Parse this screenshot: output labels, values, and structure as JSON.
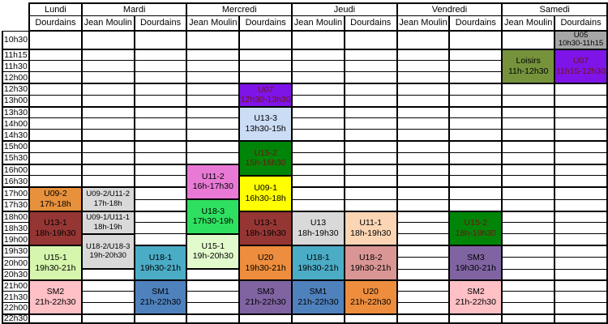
{
  "schedule": {
    "days": [
      {
        "label": "Lundi",
        "venues": [
          "Dourdains"
        ]
      },
      {
        "label": "Mardi",
        "venues": [
          "Jean Moulin",
          "Dourdains"
        ]
      },
      {
        "label": "Mercredi",
        "venues": [
          "Jean Moulin",
          "Dourdains"
        ]
      },
      {
        "label": "Jeudi",
        "venues": [
          "Jean Moulin",
          "Dourdains"
        ]
      },
      {
        "label": "Vendredi",
        "venues": [
          "Jean Moulin",
          "Dourdains"
        ]
      },
      {
        "label": "Samedi",
        "venues": [
          "Jean Moulin",
          "Dourdains"
        ]
      }
    ],
    "columns": [
      "lundi-dourdains",
      "mardi-jean-moulin",
      "mardi-dourdains",
      "mercredi-jean-moulin",
      "mercredi-dourdains",
      "jeudi-jean-moulin",
      "jeudi-dourdains",
      "vendredi-jean-moulin",
      "vendredi-dourdains",
      "samedi-jean-moulin",
      "samedi-dourdains"
    ],
    "time_rows": [
      "10h30",
      "11h15",
      "11h30",
      "12h00",
      "12h30",
      "13h00",
      "13h30",
      "14h00",
      "14h30",
      "15h00",
      "15h30",
      "16h00",
      "16h30",
      "17h00",
      "17h30",
      "18h00",
      "18h30",
      "19h00",
      "19h30",
      "20h00",
      "20h30",
      "21h00",
      "21h30",
      "22h00",
      "22h30"
    ],
    "thick_top_rows": [
      "11h15",
      "12h30",
      "13h30",
      "15h00",
      "16h00",
      "17h00",
      "18h00",
      "19h30",
      "21h00",
      "22h30"
    ],
    "blocks": [
      {
        "col": 0,
        "start": "17h00",
        "span": 2,
        "name": "U09-2",
        "time": "17h-18h",
        "bg": "#E8913C",
        "fg": "#000000"
      },
      {
        "col": 0,
        "start": "18h00",
        "span": 3,
        "name": "U13-1",
        "time": "18h-19h30",
        "bg": "#963634",
        "fg": "#000000"
      },
      {
        "col": 0,
        "start": "19h30",
        "span": 3,
        "name": "U15-1",
        "time": "19h30-21h",
        "bg": "#D5F6AC",
        "fg": "#000000"
      },
      {
        "col": 0,
        "start": "21h00",
        "span": 3,
        "name": "SM2",
        "time": "21h-22h30",
        "bg": "#FFC0C6",
        "fg": "#000000"
      },
      {
        "col": 1,
        "start": "17h00",
        "span": 2,
        "name": "U09-2/U11-2",
        "time": "17h-18h",
        "bg": "#D9D9D9",
        "fg": "#000000"
      },
      {
        "col": 1,
        "start": "18h00",
        "span": 2,
        "name": "U09-1/U11-1",
        "time": "18h-19h",
        "bg": "#D9D9D9",
        "fg": "#000000"
      },
      {
        "col": 1,
        "start": "19h00",
        "span": 3,
        "name": "U18-2/U18-3",
        "time": "19h-20h30",
        "bg": "#D9D9D9",
        "fg": "#000000"
      },
      {
        "col": 2,
        "start": "19h30",
        "span": 3,
        "name": "U18-1",
        "time": "19h30-21h",
        "bg": "#4BACC6",
        "fg": "#000000"
      },
      {
        "col": 2,
        "start": "21h00",
        "span": 3,
        "name": "SM1",
        "time": "21h-22h30",
        "bg": "#4F81BD",
        "fg": "#000000"
      },
      {
        "col": 3,
        "start": "16h00",
        "span": 3,
        "name": "U11-2",
        "time": "16h-17h30",
        "bg": "#E87AD6",
        "fg": "#000000"
      },
      {
        "col": 3,
        "start": "17h30",
        "span": 3,
        "name": "U18-3",
        "time": "17h30-19h",
        "bg": "#2FE060",
        "fg": "#000000"
      },
      {
        "col": 3,
        "start": "19h00",
        "span": 3,
        "name": "U15-1",
        "time": "19h-20h30",
        "bg": "#E2FBCD",
        "fg": "#000000"
      },
      {
        "col": 4,
        "start": "12h30",
        "span": 2,
        "name": "U07",
        "time": "12h30-13h30",
        "bg": "#7E14E8",
        "fg": "#701414"
      },
      {
        "col": 4,
        "start": "13h30",
        "span": 3,
        "name": "U13-3",
        "time": "13h30-15h",
        "bg": "#CBDCF5",
        "fg": "#000000"
      },
      {
        "col": 4,
        "start": "15h00",
        "span": 3,
        "name": "U15-2",
        "time": "15h-16h30",
        "bg": "#008508",
        "fg": "#701414"
      },
      {
        "col": 4,
        "start": "16h30",
        "span": 3,
        "name": "U09-1",
        "time": "16h30-18h",
        "bg": "#FFFF00",
        "fg": "#000000"
      },
      {
        "col": 4,
        "start": "18h00",
        "span": 3,
        "name": "U13-1",
        "time": "18h-19h30",
        "bg": "#963634",
        "fg": "#000000"
      },
      {
        "col": 4,
        "start": "19h30",
        "span": 3,
        "name": "U20",
        "time": "19h30-21h",
        "bg": "#ED8D3D",
        "fg": "#000000"
      },
      {
        "col": 4,
        "start": "21h00",
        "span": 3,
        "name": "SM3",
        "time": "21h-22h30",
        "bg": "#8064A2",
        "fg": "#000000"
      },
      {
        "col": 5,
        "start": "18h00",
        "span": 3,
        "name": "U13",
        "time": "18h-19h30",
        "bg": "#D9D9D9",
        "fg": "#000000"
      },
      {
        "col": 5,
        "start": "19h30",
        "span": 3,
        "name": "U18-1",
        "time": "19h30-21h",
        "bg": "#4BACC6",
        "fg": "#000000"
      },
      {
        "col": 5,
        "start": "21h00",
        "span": 3,
        "name": "SM1",
        "time": "21h-22h30",
        "bg": "#4F81BD",
        "fg": "#000000"
      },
      {
        "col": 6,
        "start": "18h00",
        "span": 3,
        "name": "U11-1",
        "time": "18h-19h30",
        "bg": "#FCD5B4",
        "fg": "#000000"
      },
      {
        "col": 6,
        "start": "19h30",
        "span": 3,
        "name": "U18-2",
        "time": "19h30-21h",
        "bg": "#D99694",
        "fg": "#000000"
      },
      {
        "col": 6,
        "start": "21h00",
        "span": 3,
        "name": "U20",
        "time": "21h-22h30",
        "bg": "#ED8D3D",
        "fg": "#000000"
      },
      {
        "col": 8,
        "start": "18h00",
        "span": 3,
        "name": "U15-2",
        "time": "18h-19h30",
        "bg": "#008508",
        "fg": "#701414"
      },
      {
        "col": 8,
        "start": "19h30",
        "span": 3,
        "name": "SM3",
        "time": "19h30-21h",
        "bg": "#8064A2",
        "fg": "#000000"
      },
      {
        "col": 8,
        "start": "21h00",
        "span": 3,
        "name": "SM2",
        "time": "21h-22h30",
        "bg": "#FFC0C6",
        "fg": "#000000"
      },
      {
        "col": 9,
        "start": "11h15",
        "span": 3,
        "name": "Loisirs",
        "time": "11h-12h30",
        "bg": "#76933C",
        "fg": "#000000"
      },
      {
        "col": 10,
        "start": "10h30",
        "span": 1,
        "name": "U05",
        "time": "10h30-11h15",
        "bg": "#A6A6A6",
        "fg": "#000000"
      },
      {
        "col": 10,
        "start": "11h15",
        "span": 3,
        "name": "U07",
        "time": "11h15-12h30",
        "bg": "#7E14E8",
        "fg": "#701414"
      }
    ]
  }
}
